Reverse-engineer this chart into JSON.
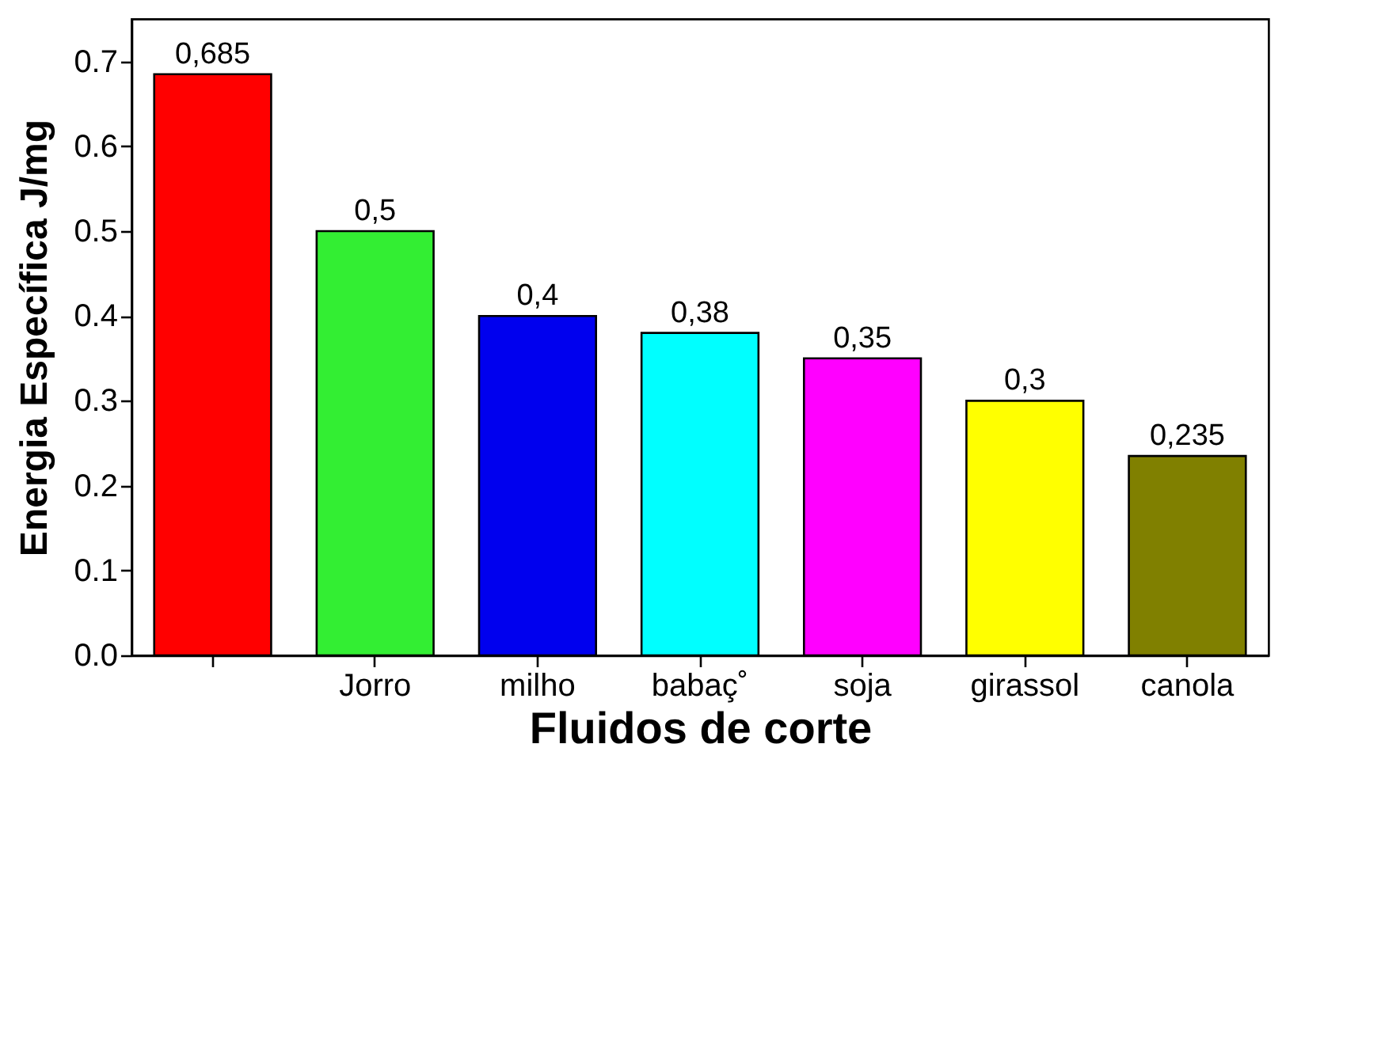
{
  "chart_data": {
    "type": "bar",
    "xlabel": "Fluidos de corte",
    "ylabel": "Energia Específica J/mg",
    "categories": [
      null,
      "Jorro",
      "milho",
      "babaç˚",
      "soja",
      "girassol",
      "canola"
    ],
    "values": [
      0.685,
      0.5,
      0.4,
      0.38,
      0.35,
      0.3,
      0.235
    ],
    "colors": [
      "#ff0000",
      "#33ee33",
      "#0000ee",
      "#00ffff",
      "#ff00ff",
      "#ffff00",
      "#808000"
    ],
    "value_labels": [
      "0,685",
      "0,5",
      "0,4",
      "0,38",
      "0,35",
      "0,3",
      "0,235"
    ],
    "ylim": [
      0,
      0.75
    ],
    "yticks": [
      {
        "value": 0,
        "label": "0.0"
      },
      0.1,
      0.2,
      0.3,
      0.4,
      0.5,
      0.6,
      0.7
    ],
    "grid": false
  }
}
